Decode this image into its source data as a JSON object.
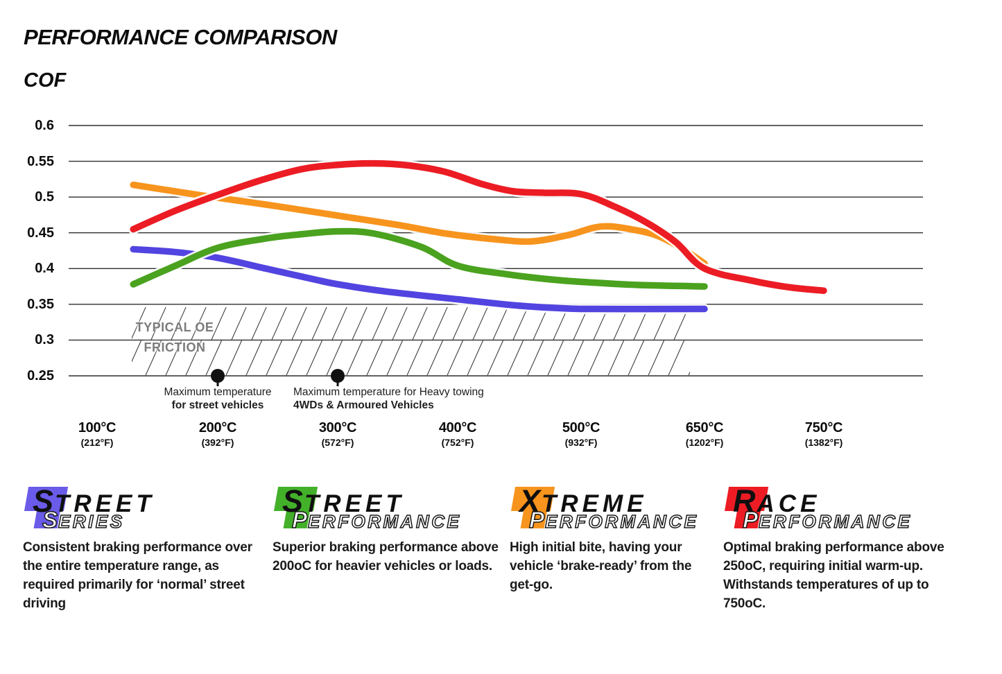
{
  "page": {
    "title": "PERFORMANCE COMPARISON",
    "cof_label": "COF"
  },
  "chart_data": {
    "type": "line",
    "title": "PERFORMANCE COMPARISON",
    "ylabel": "COF",
    "ylim": [
      0.25,
      0.6
    ],
    "grid": "horizontal",
    "legend_position": "bottom",
    "y_ticks": [
      {
        "label": "0.6",
        "value": 0.6
      },
      {
        "label": "0.55",
        "value": 0.55
      },
      {
        "label": "0.5",
        "value": 0.5
      },
      {
        "label": "0.45",
        "value": 0.45
      },
      {
        "label": "0.4",
        "value": 0.4
      },
      {
        "label": "0.35",
        "value": 0.35
      },
      {
        "label": "0.3",
        "value": 0.3
      },
      {
        "label": "0.25",
        "value": 0.25
      }
    ],
    "x_ticks": [
      {
        "t": 100,
        "label": "100°C",
        "sub": "(212°F)"
      },
      {
        "t": 200,
        "label": "200°C",
        "sub": "(392°F)"
      },
      {
        "t": 300,
        "label": "300°C",
        "sub": "(572°F)"
      },
      {
        "t": 400,
        "label": "400°C",
        "sub": "(752°F)"
      },
      {
        "t": 500,
        "label": "500°C",
        "sub": "(932°F)"
      },
      {
        "t": 650,
        "label": "650°C",
        "sub": "(1202°F)"
      },
      {
        "t": 750,
        "label": "750°C",
        "sub": "(1382°F)"
      }
    ],
    "series": [
      {
        "name": "Street Series",
        "color": "#5244e0",
        "points": [
          [
            130,
            0.427
          ],
          [
            165,
            0.423
          ],
          [
            200,
            0.415
          ],
          [
            240,
            0.4
          ],
          [
            280,
            0.385
          ],
          [
            300,
            0.378
          ],
          [
            340,
            0.368
          ],
          [
            400,
            0.357
          ],
          [
            450,
            0.348
          ],
          [
            490,
            0.344
          ],
          [
            520,
            0.3435
          ],
          [
            650,
            0.3435
          ]
        ]
      },
      {
        "name": "Street Performance",
        "color": "#4aa21f",
        "points": [
          [
            130,
            0.378
          ],
          [
            165,
            0.404
          ],
          [
            200,
            0.429
          ],
          [
            240,
            0.442
          ],
          [
            270,
            0.448
          ],
          [
            300,
            0.452
          ],
          [
            330,
            0.449
          ],
          [
            370,
            0.43
          ],
          [
            400,
            0.404
          ],
          [
            440,
            0.392
          ],
          [
            480,
            0.384
          ],
          [
            520,
            0.38
          ],
          [
            570,
            0.377
          ],
          [
            650,
            0.375
          ]
        ]
      },
      {
        "name": "Xtreme Performance",
        "color": "#f7941d",
        "points": [
          [
            130,
            0.517
          ],
          [
            180,
            0.504
          ],
          [
            200,
            0.499
          ],
          [
            250,
            0.487
          ],
          [
            300,
            0.474
          ],
          [
            350,
            0.461
          ],
          [
            390,
            0.449
          ],
          [
            430,
            0.441
          ],
          [
            460,
            0.438
          ],
          [
            490,
            0.447
          ],
          [
            515,
            0.457
          ],
          [
            535,
            0.459
          ],
          [
            560,
            0.455
          ],
          [
            590,
            0.447
          ],
          [
            620,
            0.43
          ],
          [
            650,
            0.407
          ]
        ]
      },
      {
        "name": "Race Performance",
        "color": "#ec1c24",
        "points": [
          [
            130,
            0.455
          ],
          [
            165,
            0.481
          ],
          [
            200,
            0.503
          ],
          [
            235,
            0.523
          ],
          [
            270,
            0.539
          ],
          [
            300,
            0.545
          ],
          [
            330,
            0.547
          ],
          [
            360,
            0.544
          ],
          [
            390,
            0.535
          ],
          [
            420,
            0.518
          ],
          [
            445,
            0.508
          ],
          [
            470,
            0.506
          ],
          [
            500,
            0.504
          ],
          [
            540,
            0.487
          ],
          [
            580,
            0.464
          ],
          [
            615,
            0.437
          ],
          [
            650,
            0.4
          ],
          [
            690,
            0.383
          ],
          [
            720,
            0.374
          ],
          [
            750,
            0.369
          ]
        ]
      }
    ],
    "oe_zone": {
      "label_line1": "TYPICAL OE",
      "label_line2": "FRICTION",
      "cof_range": [
        0.25,
        0.347
      ],
      "temp_range": [
        130,
        645
      ]
    },
    "annotations": [
      {
        "t": 200,
        "line1": "Maximum temperature",
        "line2": "for street vehicles"
      },
      {
        "t": 300,
        "line1": "Maximum temperature for Heavy towing",
        "line2": "4WDs & Armoured Vehicles"
      }
    ]
  },
  "brands": [
    {
      "initial": "S",
      "top_rest": "TREET",
      "bottom_initial": "S",
      "bottom_rest": "ERIES",
      "color": "#6a5ce8",
      "description": "Consistent braking performance over the entire temperature range, as required primarily for ‘normal’ street driving"
    },
    {
      "initial": "S",
      "top_rest": "TREET",
      "bottom_initial": "P",
      "bottom_rest": "ERFORMANCE",
      "color": "#43b02a",
      "description": "Superior braking performance above 200oC for heavier vehicles or loads."
    },
    {
      "initial": "X",
      "top_rest": "TREME",
      "bottom_initial": "P",
      "bottom_rest": "ERFORMANCE",
      "color": "#f7941d",
      "description": "High initial bite, having your vehicle ‘brake-ready’ from the get-go."
    },
    {
      "initial": "R",
      "top_rest": "ACE",
      "bottom_initial": "P",
      "bottom_rest": "ERFORMANCE",
      "color": "#ed1c24",
      "description": "Optimal braking performance above 250oC, requiring initial warm-up. Withstands temperatures of up to 750oC."
    }
  ]
}
